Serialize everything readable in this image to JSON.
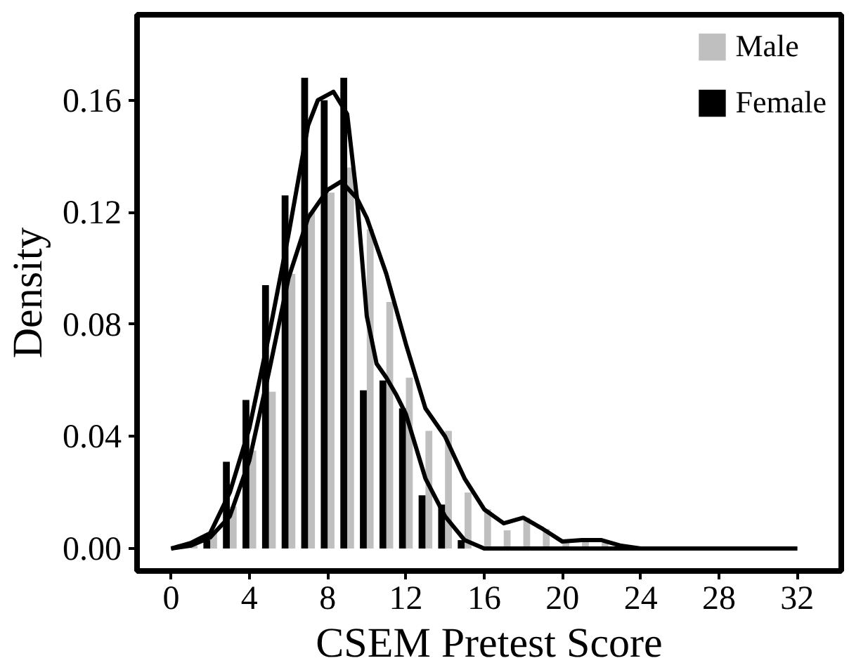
{
  "chart_data": {
    "type": "bar",
    "xlabel": "CSEM Pretest Score",
    "ylabel": "Density",
    "x": [
      0,
      1,
      2,
      3,
      4,
      5,
      6,
      7,
      8,
      9,
      10,
      11,
      12,
      13,
      14,
      15,
      16,
      17,
      18,
      19,
      20,
      21,
      22
    ],
    "series": [
      {
        "name": "Male",
        "color": "#bfbfbf",
        "values": [
          0,
          0.001,
          0.0057,
          0.015,
          0.035,
          0.056,
          0.098,
          0.12,
          0.127,
          0.136,
          0.114,
          0.088,
          0.061,
          0.042,
          0.042,
          0.02,
          0.014,
          0.0065,
          0.011,
          0.007,
          0.002,
          0.003,
          0.002
        ]
      },
      {
        "name": "Female",
        "color": "#000000",
        "values": [
          0,
          null,
          0.003,
          0.031,
          0.053,
          0.094,
          0.126,
          0.168,
          0.16,
          0.168,
          0.0565,
          0.06,
          0.05,
          0.019,
          0.0157,
          0.003,
          0,
          0,
          0,
          0,
          0,
          0,
          0
        ]
      },
      {
        "type": "line",
        "color": "#000000",
        "x": [
          0,
          1,
          2,
          3,
          4,
          5,
          6,
          7,
          8,
          8.7,
          9.5,
          10,
          11,
          12,
          13,
          14,
          15,
          16,
          17,
          18,
          19,
          20,
          21,
          22,
          23,
          24,
          32
        ],
        "values": [
          0,
          0.001,
          0.004,
          0.0115,
          0.0315,
          0.063,
          0.0965,
          0.118,
          0.128,
          0.131,
          0.125,
          0.118,
          0.098,
          0.073,
          0.05,
          0.04,
          0.025,
          0.014,
          0.009,
          0.011,
          0.007,
          0.0025,
          0.003,
          0.003,
          0.001,
          0,
          0
        ]
      },
      {
        "type": "line",
        "color": "#000000",
        "x": [
          0,
          1,
          2,
          3,
          4,
          5,
          6,
          7,
          7.5,
          8.3,
          9,
          9.5,
          10,
          10.5,
          11,
          11.5,
          12,
          13,
          14,
          15,
          16,
          32
        ],
        "values": [
          0,
          0.002,
          0.0055,
          0.02,
          0.043,
          0.076,
          0.112,
          0.151,
          0.16,
          0.163,
          0.155,
          0.125,
          0.083,
          0.066,
          0.061,
          0.055,
          0.048,
          0.025,
          0.0115,
          0.003,
          0,
          0
        ]
      }
    ],
    "xlim": [
      -1.74,
      34.25
    ],
    "ylim": [
      -0.008,
      0.1905
    ],
    "xticks": [
      0,
      4,
      8,
      12,
      16,
      20,
      24,
      28,
      32
    ],
    "yticks": [
      {
        "value": 0,
        "label": "0.00"
      },
      {
        "value": 0.04,
        "label": "0.04"
      },
      {
        "value": 0.08,
        "label": "0.08"
      },
      {
        "value": 0.12,
        "label": "0.12"
      },
      {
        "value": 0.16,
        "label": "0.16"
      }
    ],
    "grid": false,
    "legend": "top right",
    "line_style": "solid",
    "marker": "none"
  }
}
